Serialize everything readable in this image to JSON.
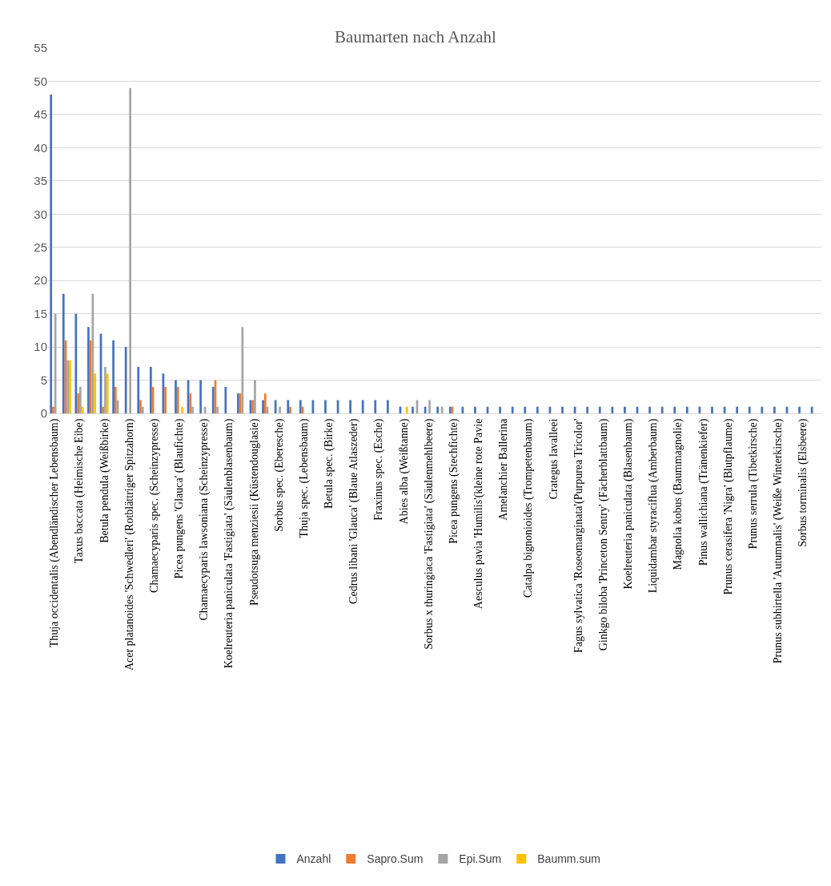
{
  "chart_data": {
    "type": "bar",
    "title": "Baumarten nach Anzahl",
    "categories": [
      "Thuja occidentalis (Abendländischer Lebensbaum)",
      null,
      "Taxus baccata (Heimische Eibe)",
      null,
      "Betula pendula (Weißbirke)",
      null,
      "Acer platanoides 'Schwedleri' (Rotblättriger Spitzahorn)",
      null,
      "Chamaecyparis spec. (Scheinzypresse)",
      null,
      "Picea pungens 'Glauca' (Blaufichte)",
      null,
      "Chamaecyparis lawsoniana (Scheinzypresse)",
      null,
      "Koelreuteria paniculata 'Fastigiata' (Säulenblasenbaum)",
      null,
      "Pseudotsuga menziesii (Küstendouglasie)",
      null,
      "Sorbus spec. (Eberesche)",
      null,
      "Thuja spec. (Lebensbaum)",
      null,
      "Betula spec. (Birke)",
      null,
      "Cedrus libani 'Glauca' (Blaue Atlaszeder)",
      null,
      "Fraxinus spec. (Esche)",
      null,
      "Abies alba (Weißtanne)",
      null,
      "Sorbus x thuringiaca 'Fastigiata' (Säulenmehlbeere)",
      null,
      "Picea pungens (Stechfichte)",
      null,
      "Aesculus pavia 'Humilis'(kleine rote Pavie",
      null,
      "Amelanchier Ballerina",
      null,
      "Catalpa bignonioides (Trompetenbaum)",
      null,
      "Crategus lavalleei",
      null,
      "Fagus sylvatica 'Roseomarginata'(Purpurea Tricolor'",
      null,
      "Ginkgo biloba 'Princeton Sentry' (Fächerblattbaum)",
      null,
      "Koelreuteria paniculata (Blasenbaum)",
      null,
      "Liquidambar styraciflua (Amberbaum)",
      null,
      "Magnolia kobus (Baummagnolie)",
      null,
      "Pinus wallichiana (Tränenkiefer)",
      null,
      "Prunus cerasifera 'Nigra' (Blutpflaume)",
      null,
      "Prunus serrula (Tibetkirsche)",
      null,
      "Prunus subhirtella 'Autumnalis' (Weiße Winterkirsche)",
      null,
      "Sorbus torminalis (Elsbeere)",
      null
    ],
    "series": [
      {
        "name": "Anzahl",
        "color": "#4472c4",
        "values": [
          48,
          18,
          15,
          13,
          12,
          11,
          10,
          7,
          7,
          6,
          5,
          5,
          5,
          4,
          4,
          3,
          2,
          2,
          2,
          2,
          2,
          2,
          2,
          2,
          2,
          2,
          2,
          2,
          1,
          1,
          1,
          1,
          1,
          1,
          1,
          1,
          1,
          1,
          1,
          1,
          1,
          1,
          1,
          1,
          1,
          1,
          1,
          1,
          1,
          1,
          1,
          1,
          1,
          1,
          1,
          1,
          1,
          1,
          1,
          1,
          1,
          1
        ]
      },
      {
        "name": "Sapro.Sum",
        "color": "#ed7d31",
        "values": [
          1,
          11,
          3,
          11,
          1,
          4,
          null,
          2,
          4,
          4,
          4,
          3,
          null,
          5,
          null,
          3,
          2,
          3,
          null,
          1,
          1,
          null,
          null,
          null,
          null,
          null,
          null,
          null,
          null,
          null,
          null,
          null,
          1,
          null,
          null,
          null,
          null,
          null,
          null,
          null,
          null,
          null,
          null,
          null,
          null,
          null,
          null,
          null,
          null,
          null,
          null,
          null,
          null,
          null,
          null,
          null,
          null,
          null,
          null,
          null,
          null,
          null
        ]
      },
      {
        "name": "Epi.Sum",
        "color": "#a5a5a5",
        "values": [
          15,
          8,
          4,
          18,
          7,
          2,
          49,
          1,
          null,
          null,
          null,
          1,
          1,
          1,
          null,
          13,
          5,
          1,
          1,
          null,
          null,
          null,
          null,
          null,
          null,
          null,
          null,
          null,
          null,
          2,
          2,
          1,
          null,
          null,
          null,
          null,
          null,
          null,
          null,
          null,
          null,
          null,
          null,
          null,
          null,
          null,
          null,
          null,
          null,
          null,
          null,
          null,
          null,
          null,
          null,
          null,
          null,
          null,
          null,
          null,
          null,
          null
        ]
      },
      {
        "name": "Baumm.sum",
        "color": "#ffc000",
        "values": [
          null,
          8,
          1,
          6,
          6,
          null,
          null,
          null,
          null,
          null,
          1,
          null,
          null,
          null,
          null,
          null,
          null,
          null,
          null,
          null,
          null,
          null,
          null,
          null,
          null,
          null,
          null,
          null,
          1,
          null,
          null,
          null,
          null,
          null,
          null,
          null,
          null,
          null,
          null,
          null,
          null,
          null,
          null,
          null,
          null,
          null,
          null,
          null,
          null,
          null,
          null,
          null,
          null,
          null,
          null,
          null,
          null,
          null,
          null,
          null,
          null,
          null
        ]
      }
    ],
    "ylim": [
      0,
      55
    ],
    "yticks": [
      0,
      5,
      10,
      15,
      20,
      25,
      30,
      35,
      40,
      45,
      50,
      55
    ],
    "grid": "y",
    "legend": "bottom"
  }
}
